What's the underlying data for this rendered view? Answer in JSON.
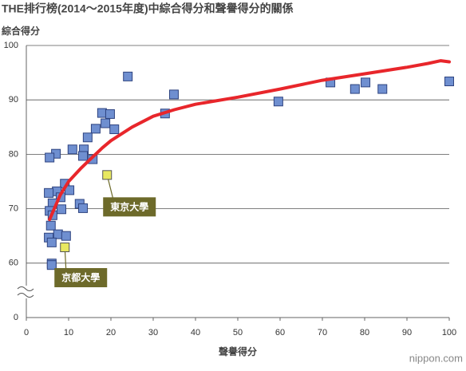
{
  "chart_data": {
    "type": "scatter",
    "title": "THE排行榜(2014～2015年度)中綜合得分和聲譽得分的關係",
    "ylabel": "綜合得分",
    "xlabel": "聲譽得分",
    "source": "nippon.com",
    "xlim": [
      0,
      100
    ],
    "xticks": [
      0,
      10,
      20,
      30,
      40,
      50,
      60,
      70,
      80,
      90,
      100
    ],
    "ylim": [
      0,
      100
    ],
    "yticks": [
      0,
      60,
      70,
      80,
      90,
      100
    ],
    "y_break": [
      0,
      60
    ],
    "grid": true,
    "series": [
      {
        "color": "#6f8fd0",
        "x": [
          24,
          34.9,
          32.8,
          59.6,
          71.9,
          80.2,
          77.7,
          84.2,
          100,
          17.9,
          19.8,
          18.7,
          16.4,
          20.8,
          14.5,
          10.9,
          13.6,
          13.4,
          15.7,
          7.0,
          5.5,
          9.1,
          10.2,
          7.2,
          5.3,
          8.1,
          6.2,
          12.6,
          13.4,
          8.3,
          5.5,
          6.2,
          5.8,
          7.5,
          5.3,
          9.4,
          6.0,
          6.0,
          6.0
        ],
        "values": [
          94.3,
          91,
          87.5,
          89.7,
          93.2,
          93.2,
          92,
          92,
          93.4,
          87.6,
          87.4,
          85.7,
          84.7,
          84.6,
          83.1,
          80.9,
          80.9,
          79.7,
          79.1,
          80.1,
          79.4,
          74.6,
          73.4,
          73.2,
          72.9,
          72.1,
          71.0,
          70.9,
          70.1,
          69.9,
          69.6,
          68.8,
          66.9,
          65.3,
          64.7,
          65.0,
          63.8,
          59.6,
          57.9
        ]
      },
      {
        "color": "#e8e860",
        "labels": [
          "東京大學",
          "京都大學"
        ],
        "x": [
          19.1,
          9.1
        ],
        "values": [
          76.2,
          62.9
        ]
      }
    ],
    "trend": {
      "color": "#e8262b",
      "x": [
        5.5,
        8,
        10,
        13,
        15,
        18,
        20,
        25,
        30,
        35,
        40,
        50,
        60,
        70,
        80,
        90,
        95,
        98,
        100
      ],
      "values": [
        68,
        72.5,
        75,
        77.5,
        79,
        81.2,
        82.5,
        85,
        87,
        88.2,
        89.2,
        90.5,
        92,
        93.6,
        94.8,
        96,
        96.7,
        97.2,
        97
      ]
    }
  }
}
